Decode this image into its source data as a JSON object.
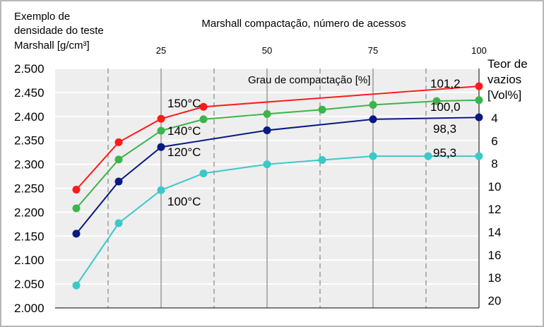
{
  "chart_data": {
    "type": "line",
    "ylabel": [
      "Exemplo de",
      "densidade do teste",
      "Marshall [g/cm³]"
    ],
    "top_axis_title": "Marshall compactação, número de acessos",
    "top_ticks": [
      "25",
      "50",
      "75",
      "100"
    ],
    "right_axis_title": [
      "Teor de",
      "vazios",
      "[Vol%]"
    ],
    "right_ticks": [
      "4",
      "6",
      "8",
      "10",
      "12",
      "14",
      "16",
      "18",
      "20"
    ],
    "y_ticks": [
      "2.500",
      "2.450",
      "2.400",
      "2.350",
      "2.300",
      "2.250",
      "2.200",
      "2.150",
      "2.100",
      "2.050",
      "2.000"
    ],
    "ylim": [
      2.0,
      2.5
    ],
    "inner_title": "Grau de compactação [%]",
    "grid": true,
    "series": [
      {
        "name": "150°C",
        "color": "#ff1a1a",
        "end_label": "101,2",
        "x": [
          5,
          15,
          25,
          35,
          100
        ],
        "values": [
          2.247,
          2.346,
          2.395,
          2.42,
          2.463
        ]
      },
      {
        "name": "140°C",
        "color": "#3cb44b",
        "end_label": "100,0",
        "x": [
          5,
          15,
          25,
          35,
          50,
          63,
          75,
          90,
          100
        ],
        "values": [
          2.208,
          2.31,
          2.37,
          2.394,
          2.405,
          2.414,
          2.424,
          2.432,
          2.434
        ]
      },
      {
        "name": "120°C",
        "color": "#0a1a80",
        "end_label": "98,3",
        "x": [
          5,
          15,
          25,
          50,
          75,
          100
        ],
        "values": [
          2.155,
          2.264,
          2.336,
          2.371,
          2.394,
          2.398
        ]
      },
      {
        "name": "100°C",
        "color": "#3cc8c8",
        "end_label": "95,3",
        "x": [
          5,
          15,
          25,
          35,
          50,
          63,
          75,
          88,
          100
        ],
        "values": [
          2.047,
          2.177,
          2.246,
          2.281,
          2.3,
          2.309,
          2.317,
          2.317,
          2.317
        ]
      }
    ]
  }
}
